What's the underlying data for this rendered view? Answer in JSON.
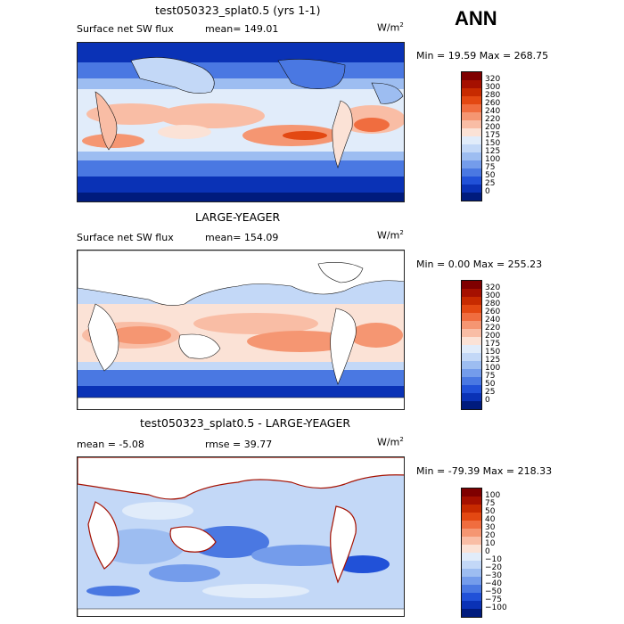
{
  "season": "ANN",
  "panels": [
    {
      "title": "test050323_splat0.5 (yrs 1-1)",
      "variable": "Surface net SW flux",
      "stat": "mean= 149.01",
      "units_base": "W/m",
      "units_exp": "2",
      "minmax": "Min =  19.59 Max = 268.75",
      "colorbar_labels": [
        "320",
        "300",
        "280",
        "260",
        "240",
        "220",
        "200",
        "175",
        "150",
        "125",
        "100",
        "75",
        "50",
        "25",
        "0"
      ],
      "colorbar_colors": [
        "#7f0000",
        "#a51000",
        "#c72a00",
        "#e34812",
        "#f06d3f",
        "#f59672",
        "#f9bda5",
        "#fbe2d6",
        "#e1ecfa",
        "#c3d8f7",
        "#9dbdf1",
        "#749ceb",
        "#4a78e2",
        "#2151d8",
        "#0a32b6",
        "#001b7d"
      ]
    },
    {
      "title": "LARGE-YEAGER",
      "variable": "Surface net SW flux",
      "stat": "mean= 154.09",
      "units_base": "W/m",
      "units_exp": "2",
      "minmax": "Min =   0.00 Max = 255.23",
      "colorbar_labels": [
        "320",
        "300",
        "280",
        "260",
        "240",
        "220",
        "200",
        "175",
        "150",
        "125",
        "100",
        "75",
        "50",
        "25",
        "0"
      ],
      "colorbar_colors": [
        "#7f0000",
        "#a51000",
        "#c72a00",
        "#e34812",
        "#f06d3f",
        "#f59672",
        "#f9bda5",
        "#fbe2d6",
        "#e1ecfa",
        "#c3d8f7",
        "#9dbdf1",
        "#749ceb",
        "#4a78e2",
        "#2151d8",
        "#0a32b6",
        "#001b7d"
      ]
    },
    {
      "title": "test050323_splat0.5 - LARGE-YEAGER",
      "variable": "mean =  -5.08",
      "stat": "rmse =  39.77",
      "units_base": "W/m",
      "units_exp": "2",
      "minmax": "Min = -79.39 Max = 218.33",
      "colorbar_labels": [
        "100",
        "75",
        "50",
        "40",
        "30",
        "20",
        "10",
        "0",
        "−10",
        "−20",
        "−30",
        "−40",
        "−50",
        "−75",
        "−100"
      ],
      "colorbar_colors": [
        "#7f0000",
        "#a51000",
        "#c72a00",
        "#e34812",
        "#f06d3f",
        "#f59672",
        "#f9bda5",
        "#fbe2d6",
        "#e1ecfa",
        "#c3d8f7",
        "#9dbdf1",
        "#749ceb",
        "#4a78e2",
        "#2151d8",
        "#0a32b6",
        "#001b7d"
      ]
    }
  ],
  "chart_data": [
    {
      "type": "heatmap",
      "title": "test050323_splat0.5 (yrs 1-1)",
      "variable": "Surface net SW flux",
      "units": "W/m2",
      "mean": 149.01,
      "min": 19.59,
      "max": 268.75,
      "levels": [
        0,
        25,
        50,
        75,
        100,
        125,
        150,
        175,
        200,
        220,
        240,
        260,
        280,
        300,
        320
      ]
    },
    {
      "type": "heatmap",
      "title": "LARGE-YEAGER",
      "variable": "Surface net SW flux",
      "units": "W/m2",
      "mean": 154.09,
      "min": 0.0,
      "max": 255.23,
      "levels": [
        0,
        25,
        50,
        75,
        100,
        125,
        150,
        175,
        200,
        220,
        240,
        260,
        280,
        300,
        320
      ]
    },
    {
      "type": "heatmap",
      "title": "test050323_splat0.5 - LARGE-YEAGER",
      "units": "W/m2",
      "mean": -5.08,
      "rmse": 39.77,
      "min": -79.39,
      "max": 218.33,
      "levels": [
        -100,
        -75,
        -50,
        -40,
        -30,
        -20,
        -10,
        0,
        10,
        20,
        30,
        40,
        50,
        75,
        100
      ]
    }
  ]
}
